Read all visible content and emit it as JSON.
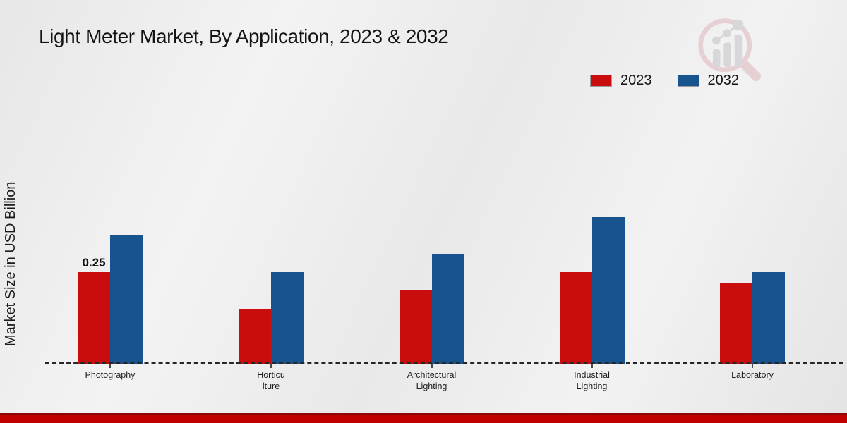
{
  "title": "Light Meter Market, By Application, 2023 & 2032",
  "y_axis_label": "Market Size in USD Billion",
  "legend": {
    "position": "top-right",
    "items": [
      {
        "label": "2023",
        "color": "#c90d0e"
      },
      {
        "label": "2032",
        "color": "#17538f"
      }
    ]
  },
  "chart_data": {
    "type": "bar",
    "title": "Light Meter Market, By Application, 2023 & 2032",
    "ylabel": "Market Size in USD Billion",
    "xlabel": "",
    "categories": [
      "Photography",
      "Horticulture",
      "Architectural Lighting",
      "Industrial Lighting",
      "Laboratory"
    ],
    "categories_display": [
      [
        "Photography"
      ],
      [
        "Horticu",
        "lture"
      ],
      [
        "Architectural",
        "Lighting"
      ],
      [
        "Industrial",
        "Lighting"
      ],
      [
        "Laboratory"
      ]
    ],
    "series": [
      {
        "name": "2023",
        "color": "#c90d0e",
        "values": [
          0.25,
          0.15,
          0.2,
          0.25,
          0.22
        ]
      },
      {
        "name": "2032",
        "color": "#17538f",
        "values": [
          0.35,
          0.25,
          0.3,
          0.4,
          0.25
        ]
      }
    ],
    "ylim": [
      0,
      0.45
    ],
    "grid": false,
    "axis_style": "dashed-baseline-only",
    "legend_position": "top-right",
    "data_labels": [
      {
        "series": "2023",
        "category": "Photography",
        "text": "0.25"
      }
    ],
    "unit": "USD Billion"
  },
  "watermark": {
    "name": "magnifier-bar-chart-logo",
    "ring_color": "#dfb6bd",
    "bars_color": "#c3c3c9"
  },
  "footer": {
    "bar_color": "#c00000"
  }
}
